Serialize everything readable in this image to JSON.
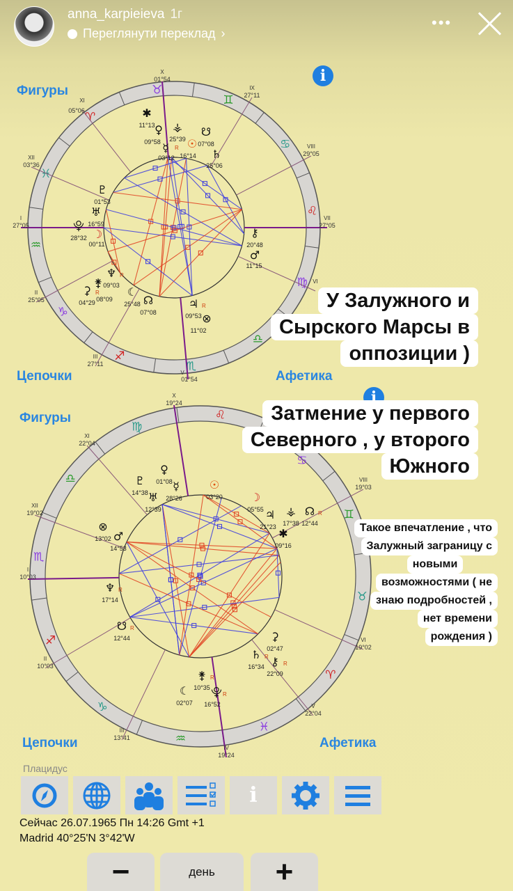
{
  "story": {
    "username": "anna_karpieieva",
    "age": "1г",
    "translate_label": "Переглянути переклад",
    "more_icon": "ellipsis-icon",
    "close_icon": "close-icon"
  },
  "colors": {
    "accent": "#2a86e0",
    "ring": "#d8d6d2",
    "house_line": "#8a5a7a",
    "axis": "#7a1a8a",
    "aspect_blue": "#3a3ae0",
    "aspect_red": "#e04020"
  },
  "chart1": {
    "figures_label": "Фигуры",
    "chains_label": "Цепочки",
    "afetika_label": "Афетика",
    "houses": [
      {
        "n": "X",
        "deg": "01°54"
      },
      {
        "n": "IX",
        "deg": "27°11"
      },
      {
        "n": "VIII",
        "deg": "29°05"
      },
      {
        "n": "VII",
        "deg": "27°05"
      },
      {
        "n": "VI",
        "deg": ""
      },
      {
        "n": "V",
        "deg": "01°54"
      },
      {
        "n": "III",
        "deg": "27°11"
      },
      {
        "n": "II",
        "deg": "25°05"
      },
      {
        "n": "I",
        "deg": "27°05"
      },
      {
        "n": "XII",
        "deg": "03°36"
      },
      {
        "n": "XI",
        "deg": "05°06"
      }
    ],
    "planets": [
      {
        "g": "✱",
        "deg": "11°13"
      },
      {
        "g": "♀",
        "deg": "09°58"
      },
      {
        "g": "⚶",
        "deg": "25°39"
      },
      {
        "g": "☋",
        "deg": "07°08"
      },
      {
        "g": "☿",
        "deg": "03°12",
        "r": "R"
      },
      {
        "g": "☉",
        "deg": "16°14"
      },
      {
        "g": "♄",
        "deg": "25°06"
      },
      {
        "g": "♇",
        "deg": "01°53"
      },
      {
        "g": "♅",
        "deg": "16°59"
      },
      {
        "g": "⯓",
        "deg": "28°32"
      },
      {
        "g": "☽",
        "deg": "00°11"
      },
      {
        "g": "♆",
        "deg": "09°03",
        "r": "R"
      },
      {
        "g": "⚳",
        "deg": "04°29",
        "r": "R"
      },
      {
        "g": "⚵",
        "deg": "08°09"
      },
      {
        "g": "☾",
        "deg": "25°48"
      },
      {
        "g": "☊",
        "deg": "07°08"
      },
      {
        "g": "♃",
        "deg": "09°53",
        "r": "R"
      },
      {
        "g": "⊗",
        "deg": "11°02"
      },
      {
        "g": "⚷",
        "deg": "20°48"
      },
      {
        "g": "♂",
        "deg": "11°15"
      }
    ],
    "signs": [
      "♌",
      "♋",
      "♊",
      "♉",
      "♈",
      "♓",
      "♒",
      "♑",
      "♐",
      "♏",
      "♎",
      "♍"
    ]
  },
  "chart2": {
    "figures_label": "Фигуры",
    "chains_label": "Цепочки",
    "afetika_label": "Афетика",
    "houses": [
      {
        "n": "X",
        "deg": "19°24"
      },
      {
        "n": "XI",
        "deg": "22°04"
      },
      {
        "n": "XII",
        "deg": "19°02"
      },
      {
        "n": "I",
        "deg": "10°03"
      },
      {
        "n": "II",
        "deg": "10°03"
      },
      {
        "n": "III",
        "deg": "13°41"
      },
      {
        "n": "IV",
        "deg": "19°24"
      },
      {
        "n": "V",
        "deg": "22°04"
      },
      {
        "n": "VI",
        "deg": "19°02"
      },
      {
        "n": "VIII",
        "deg": "19°03"
      }
    ],
    "planets": [
      {
        "g": "♀",
        "deg": "01°08"
      },
      {
        "g": "♇",
        "deg": "14°38"
      },
      {
        "g": "☿",
        "deg": "28°26"
      },
      {
        "g": "♅",
        "deg": "12°39"
      },
      {
        "g": "☉",
        "deg": "03°20"
      },
      {
        "g": "☽",
        "deg": "05°55"
      },
      {
        "g": "♃",
        "deg": "21°23"
      },
      {
        "g": "⚶",
        "deg": "17°38"
      },
      {
        "g": "☊",
        "deg": "12°44",
        "r": "R"
      },
      {
        "g": "✱",
        "deg": "09°16"
      },
      {
        "g": "⊗",
        "deg": "13°02"
      },
      {
        "g": "♂",
        "deg": "14°53"
      },
      {
        "g": "♆",
        "deg": "17°14",
        "r": "R"
      },
      {
        "g": "☋",
        "deg": "12°44",
        "r": "R"
      },
      {
        "g": "⚳",
        "deg": "02°47"
      },
      {
        "g": "♄",
        "deg": "16°34",
        "r": "R"
      },
      {
        "g": "⚷",
        "deg": "22°09",
        "r": "R"
      },
      {
        "g": "⚵",
        "deg": "10°35",
        "r": "R"
      },
      {
        "g": "☾",
        "deg": "02°07"
      },
      {
        "g": "⯓",
        "deg": "16°52",
        "r": "R"
      }
    ],
    "signs": [
      "♌",
      "♍",
      "♎",
      "♏",
      "♐",
      "♑",
      "♒",
      "♓",
      "♈",
      "♉",
      "♊",
      "♋"
    ]
  },
  "captions": {
    "c1": [
      "У Залужного и",
      "Сырского Марсы в",
      "оппозиции )"
    ],
    "c2": [
      "Затмение у первого",
      "Северного , у второго",
      "Южного"
    ],
    "c3": [
      "Такое впечатление , что",
      "Залужный заграницу с",
      "новыми",
      "возможностями ( не",
      "знаю подробностей ,",
      "нет времени",
      "рождения )"
    ]
  },
  "footer": {
    "house_system": "Плацидус",
    "toolbar": [
      {
        "icon": "compass-icon"
      },
      {
        "icon": "globe-icon"
      },
      {
        "icon": "people-icon"
      },
      {
        "icon": "checklist-icon"
      },
      {
        "icon": "info-icon"
      },
      {
        "icon": "gear-icon"
      },
      {
        "icon": "menu-icon"
      }
    ],
    "datetime": "Сейчас 26.07.1965 Пн 14:26 Gmt +1",
    "location": "Madrid 40°25'N 3°42'W",
    "minus_label": "−",
    "step_label": "день",
    "plus_label": "+"
  }
}
